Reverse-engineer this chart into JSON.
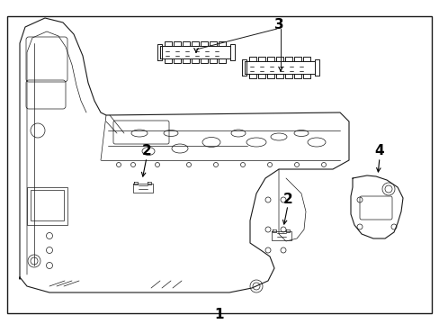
{
  "bg_color": "#ffffff",
  "border_color": "#000000",
  "line_color": "#1a1a1a",
  "font_size": 10,
  "fig_width": 4.89,
  "fig_height": 3.6,
  "dpi": 100
}
